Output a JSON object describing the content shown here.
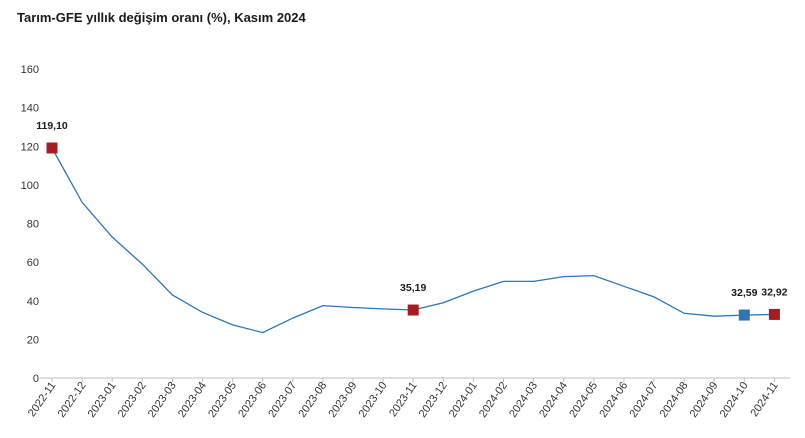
{
  "chart_data": {
    "type": "line",
    "title": "Tarım-GFE yıllık değişim oranı (%), Kasım 2024",
    "xlabel": "",
    "ylabel": "",
    "ylim": [
      0,
      160
    ],
    "y_ticks": [
      "0",
      "20",
      "40",
      "60",
      "80",
      "100",
      "120",
      "140",
      "160"
    ],
    "categories": [
      "2022-11",
      "2022-12",
      "2023-01",
      "2023-02",
      "2023-03",
      "2023-04",
      "2023-05",
      "2023-06",
      "2023-07",
      "2023-08",
      "2023-09",
      "2023-10",
      "2023-11",
      "2023-12",
      "2024-01",
      "2024-02",
      "2024-03",
      "2024-04",
      "2024-05",
      "2024-06",
      "2024-07",
      "2024-08",
      "2024-09",
      "2024-10",
      "2024-11"
    ],
    "values": [
      119.1,
      91,
      73,
      59,
      43,
      34,
      27.5,
      23.5,
      31,
      37.5,
      36.5,
      35.8,
      35.19,
      39,
      45,
      50,
      50,
      52.5,
      53,
      47.5,
      42,
      33.5,
      32,
      32.59,
      32.92
    ],
    "grid": false,
    "legend": "none",
    "line_color": "#2e75b6",
    "markers": [
      {
        "index": 0,
        "label": "119,10",
        "color": "#a61c24"
      },
      {
        "index": 12,
        "label": "35,19",
        "color": "#a61c24"
      },
      {
        "index": 23,
        "label": "32,59",
        "color": "#2e75b6"
      },
      {
        "index": 24,
        "label": "32,92",
        "color": "#a61c24"
      }
    ]
  }
}
